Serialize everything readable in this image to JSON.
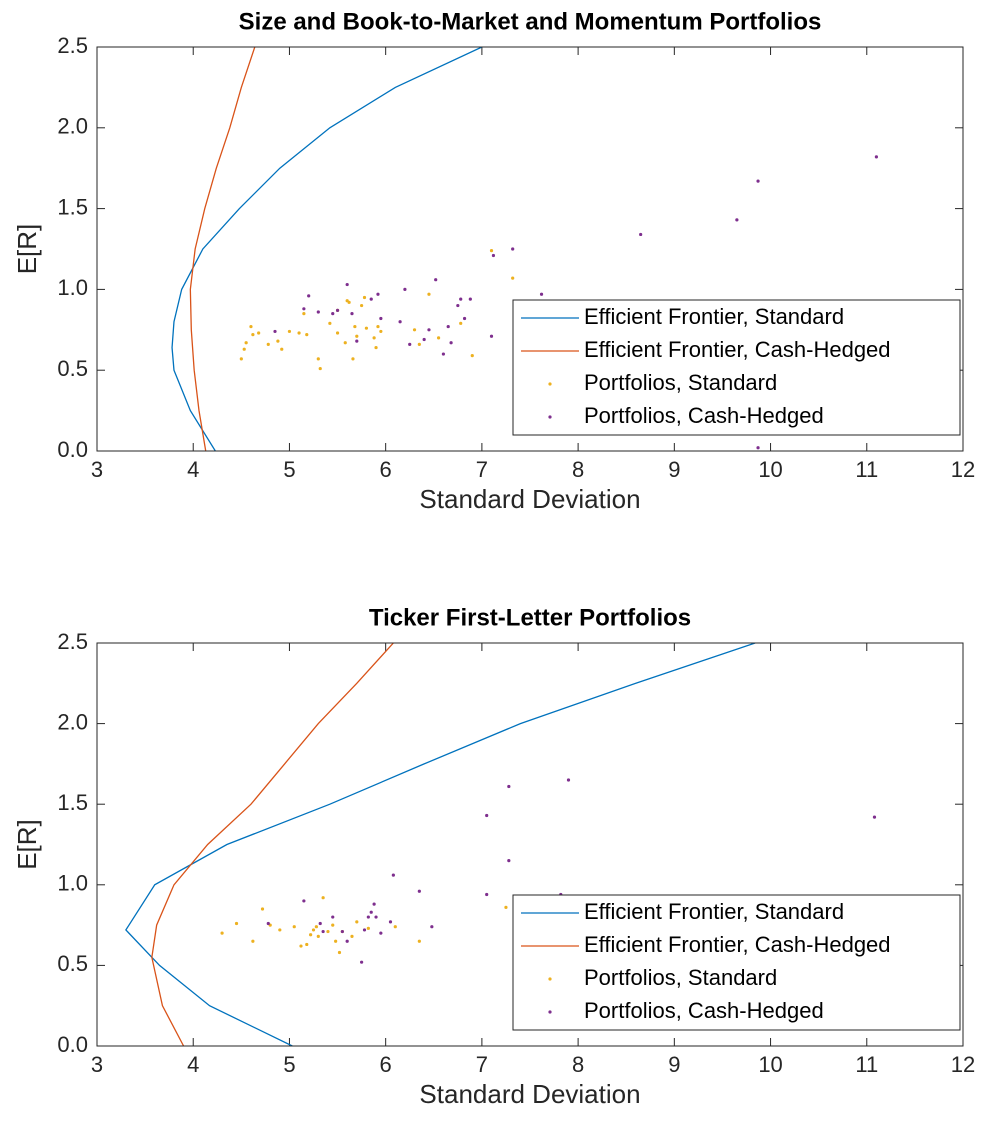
{
  "chart_data": [
    {
      "type": "scatter",
      "title": "Size and Book-to-Market and Momentum Portfolios",
      "x_label": "Standard Deviation",
      "y_label": "E[R]",
      "xlim": [
        3,
        12
      ],
      "ylim": [
        0,
        2.5
      ],
      "xticks": [
        3,
        4,
        5,
        6,
        7,
        8,
        9,
        10,
        11,
        12
      ],
      "yticks": [
        {
          "value": 0,
          "label": "0.0"
        },
        0.5,
        {
          "value": 1,
          "label": "1.0"
        },
        1.5,
        {
          "value": 2,
          "label": "2.0"
        },
        2.5
      ],
      "legend": "lower right",
      "series": [
        {
          "name": "Efficient Frontier, Standard",
          "color": "#0072BD",
          "style": "line",
          "x": [
            4.23,
            3.97,
            3.8,
            3.78,
            3.8,
            3.88,
            4.1,
            4.48,
            4.9,
            5.42,
            6.1,
            7.0
          ],
          "values": [
            0,
            0.25,
            0.5,
            0.64,
            0.8,
            1.0,
            1.25,
            1.5,
            1.75,
            2.0,
            2.25,
            2.5
          ]
        },
        {
          "name": "Efficient Frontier, Cash-Hedged",
          "color": "#D95319",
          "style": "line",
          "x": [
            4.13,
            4.06,
            4.01,
            3.98,
            3.97,
            4.02,
            4.12,
            4.24,
            4.38,
            4.5,
            4.64
          ],
          "values": [
            0,
            0.25,
            0.5,
            0.75,
            1.0,
            1.25,
            1.5,
            1.75,
            2.0,
            2.25,
            2.5
          ]
        },
        {
          "name": "Portfolios, Standard",
          "color": "#EDB120",
          "style": "dot",
          "x": [
            4.5,
            4.53,
            4.55,
            4.62,
            4.6,
            4.68,
            4.78,
            4.88,
            4.92,
            5.0,
            5.1,
            5.18,
            5.3,
            5.32,
            5.42,
            5.5,
            5.58,
            5.6,
            5.62,
            5.66,
            5.68,
            5.7,
            5.75,
            5.78,
            5.8,
            5.88,
            5.9,
            5.92,
            5.95,
            6.3,
            6.35,
            6.45,
            6.55,
            6.78,
            6.9,
            7.1,
            7.32,
            5.15,
            5.5
          ],
          "values": [
            0.57,
            0.63,
            0.67,
            0.72,
            0.77,
            0.73,
            0.66,
            0.68,
            0.63,
            0.74,
            0.73,
            0.72,
            0.57,
            0.51,
            0.79,
            0.73,
            0.67,
            0.93,
            0.92,
            0.57,
            0.77,
            0.71,
            0.9,
            0.95,
            0.76,
            0.7,
            0.64,
            0.77,
            0.74,
            0.75,
            0.66,
            0.97,
            0.7,
            0.79,
            0.59,
            1.24,
            1.07,
            0.85,
            0.87
          ]
        },
        {
          "name": "Portfolios, Cash-Hedged",
          "color": "#7E2F8E",
          "style": "dot",
          "x": [
            4.85,
            5.15,
            5.2,
            5.3,
            5.45,
            5.5,
            5.6,
            5.65,
            5.7,
            5.85,
            5.92,
            6.2,
            6.25,
            6.4,
            6.45,
            6.52,
            6.6,
            6.65,
            6.68,
            6.75,
            6.78,
            6.82,
            6.88,
            7.12,
            7.1,
            7.32,
            7.62,
            8.65,
            9.65,
            9.87,
            11.1,
            9.87,
            6.15,
            5.95
          ],
          "values": [
            0.74,
            0.88,
            0.96,
            0.86,
            0.85,
            0.87,
            1.03,
            0.85,
            0.68,
            0.94,
            0.97,
            1.0,
            0.66,
            0.69,
            0.75,
            1.06,
            0.6,
            0.77,
            0.67,
            0.9,
            0.94,
            0.82,
            0.94,
            1.21,
            0.71,
            1.25,
            0.97,
            1.34,
            1.43,
            1.67,
            1.82,
            0.02,
            0.8,
            0.82
          ]
        }
      ]
    },
    {
      "type": "scatter",
      "title": "Ticker First-Letter Portfolios",
      "x_label": "Standard Deviation",
      "y_label": "E[R]",
      "xlim": [
        3,
        12
      ],
      "ylim": [
        0,
        2.5
      ],
      "xticks": [
        3,
        4,
        5,
        6,
        7,
        8,
        9,
        10,
        11,
        12
      ],
      "yticks": [
        {
          "value": 0,
          "label": "0.0"
        },
        0.5,
        {
          "value": 1,
          "label": "1.0"
        },
        1.5,
        {
          "value": 2,
          "label": "2.0"
        },
        2.5
      ],
      "legend": "lower right",
      "series": [
        {
          "name": "Efficient Frontier, Standard",
          "color": "#0072BD",
          "style": "line",
          "x": [
            5.03,
            4.17,
            3.65,
            3.3,
            3.6,
            4.35,
            5.42,
            6.4,
            7.4,
            8.6,
            9.84
          ],
          "values": [
            0,
            0.25,
            0.5,
            0.72,
            1.0,
            1.25,
            1.5,
            1.75,
            2.0,
            2.25,
            2.5
          ]
        },
        {
          "name": "Efficient Frontier, Cash-Hedged",
          "color": "#D95319",
          "style": "line",
          "x": [
            3.9,
            3.68,
            3.57,
            3.62,
            3.8,
            4.15,
            4.6,
            4.95,
            5.3,
            5.7,
            6.08
          ],
          "values": [
            0,
            0.25,
            0.55,
            0.75,
            1.0,
            1.25,
            1.5,
            1.75,
            2.0,
            2.25,
            2.5
          ]
        },
        {
          "name": "Portfolios, Standard",
          "color": "#EDB120",
          "style": "dot",
          "x": [
            4.3,
            4.45,
            4.62,
            4.72,
            4.8,
            4.9,
            5.12,
            5.18,
            5.22,
            5.25,
            5.28,
            5.3,
            5.35,
            5.4,
            5.45,
            5.48,
            5.52,
            5.55,
            5.65,
            5.7,
            5.82,
            6.1,
            6.35,
            7.25,
            5.05
          ],
          "values": [
            0.7,
            0.76,
            0.65,
            0.85,
            0.75,
            0.72,
            0.62,
            0.63,
            0.69,
            0.72,
            0.74,
            0.68,
            0.92,
            0.71,
            0.75,
            0.65,
            0.58,
            0.71,
            0.68,
            0.77,
            0.73,
            0.74,
            0.65,
            0.86,
            0.74
          ]
        },
        {
          "name": "Portfolios, Cash-Hedged",
          "color": "#7E2F8E",
          "style": "dot",
          "x": [
            4.78,
            5.15,
            5.32,
            5.35,
            5.45,
            5.55,
            5.6,
            5.75,
            5.78,
            5.82,
            5.85,
            5.88,
            5.9,
            5.95,
            6.05,
            6.08,
            6.35,
            6.48,
            7.05,
            7.05,
            7.28,
            7.28,
            7.82,
            7.9,
            11.08
          ],
          "values": [
            0.76,
            0.9,
            0.76,
            0.71,
            0.8,
            0.71,
            0.65,
            0.52,
            0.72,
            0.8,
            0.83,
            0.88,
            0.8,
            0.7,
            0.77,
            1.06,
            0.96,
            0.74,
            1.43,
            0.94,
            1.61,
            1.15,
            0.94,
            1.65,
            1.42
          ]
        }
      ]
    }
  ]
}
